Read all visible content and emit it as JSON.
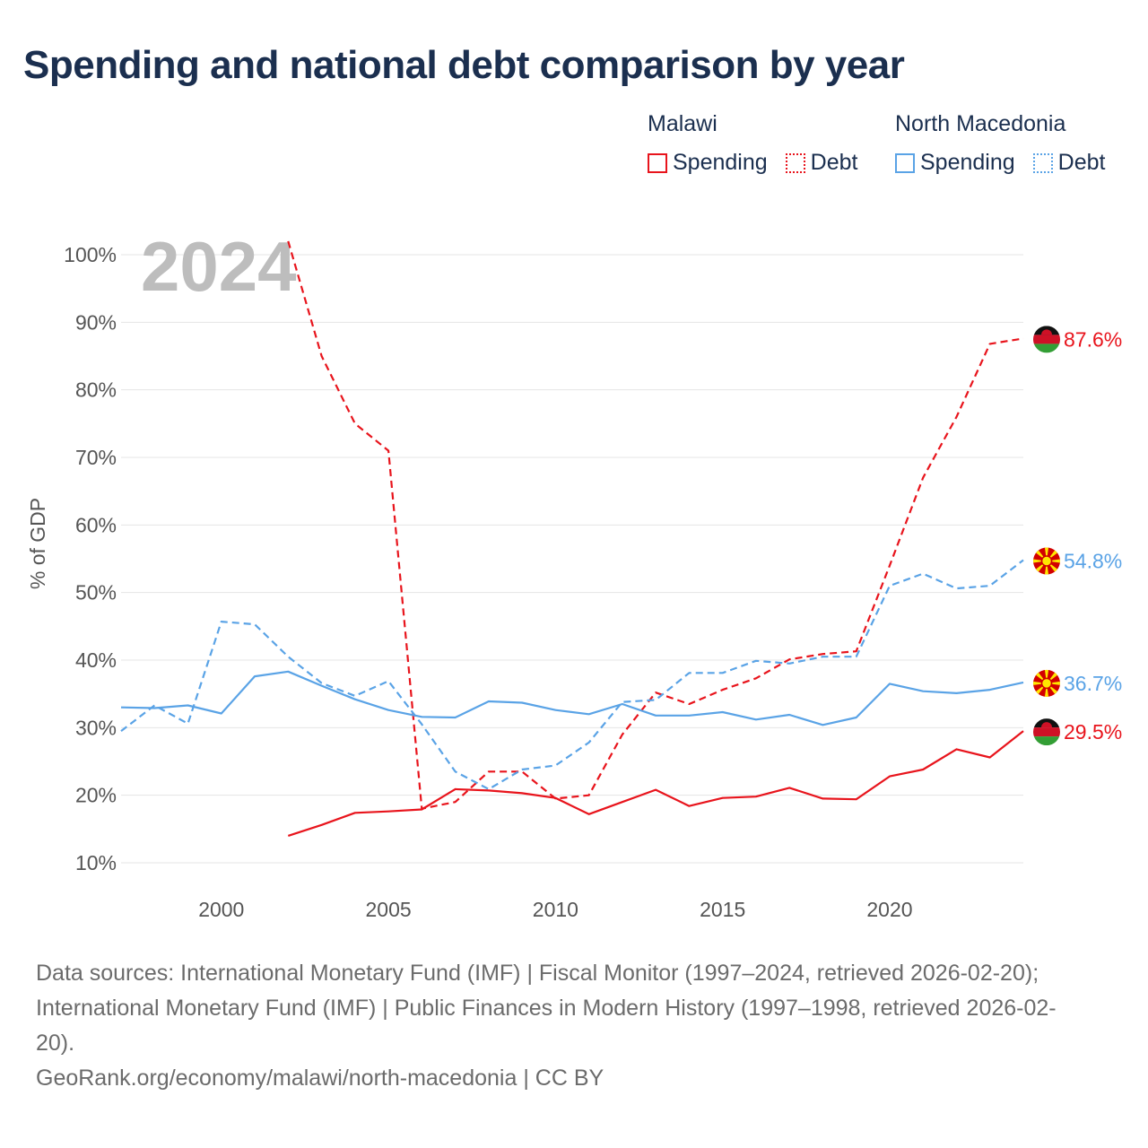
{
  "title": "Spending and national debt comparison by year",
  "legend": {
    "groups": [
      {
        "name": "Malawi",
        "items": [
          {
            "label": "Spending",
            "style": "solid",
            "color": "#e8141c"
          },
          {
            "label": "Debt",
            "style": "dashed",
            "color": "#e8141c"
          }
        ]
      },
      {
        "name": "North Macedonia",
        "items": [
          {
            "label": "Spending",
            "style": "solid",
            "color": "#5aa3e6"
          },
          {
            "label": "Debt",
            "style": "dashed",
            "color": "#5aa3e6"
          }
        ]
      }
    ]
  },
  "chart_data": {
    "type": "line",
    "title": "Spending and national debt comparison by year",
    "ylabel": "% of GDP",
    "xlabel": "",
    "year_watermark": "2024",
    "xlim": [
      1997,
      2024
    ],
    "ylim": [
      5,
      104
    ],
    "yticks": [
      10,
      20,
      30,
      40,
      50,
      60,
      70,
      80,
      90,
      100
    ],
    "ytick_labels": [
      "10%",
      "20%",
      "30%",
      "40%",
      "50%",
      "60%",
      "70%",
      "80%",
      "90%",
      "100%"
    ],
    "xticks": [
      2000,
      2005,
      2010,
      2015,
      2020
    ],
    "xtick_labels": [
      "2000",
      "2005",
      "2010",
      "2015",
      "2020"
    ],
    "grid": true,
    "series": [
      {
        "name": "Malawi Debt",
        "country": "Malawi",
        "metric": "Debt",
        "color": "#e8141c",
        "dashed": true,
        "x": [
          2002,
          2003,
          2004,
          2005,
          2006,
          2007,
          2008,
          2009,
          2010,
          2011,
          2012,
          2013,
          2014,
          2015,
          2016,
          2017,
          2018,
          2019,
          2020,
          2021,
          2022,
          2023,
          2024
        ],
        "y": [
          102,
          85,
          75,
          71,
          18,
          19,
          23.5,
          23.5,
          19.5,
          20,
          29,
          35.2,
          33.5,
          35.6,
          37.3,
          40.1,
          40.9,
          41.3,
          54,
          67,
          76,
          86.8,
          87.6
        ],
        "end_label": "87.6%",
        "flag": "malawi"
      },
      {
        "name": "North Macedonia Debt",
        "country": "North Macedonia",
        "metric": "Debt",
        "color": "#5aa3e6",
        "dashed": true,
        "x": [
          1997,
          1998,
          1999,
          2000,
          2001,
          2002,
          2003,
          2004,
          2005,
          2006,
          2007,
          2008,
          2009,
          2010,
          2011,
          2012,
          2013,
          2014,
          2015,
          2016,
          2017,
          2018,
          2019,
          2020,
          2021,
          2022,
          2023,
          2024
        ],
        "y": [
          29.5,
          33.3,
          30.6,
          45.7,
          45.3,
          40.5,
          36.6,
          34.7,
          36.9,
          30.5,
          23.5,
          20.9,
          23.8,
          24.4,
          27.8,
          33.8,
          34.1,
          38.1,
          38.1,
          39.9,
          39.5,
          40.5,
          40.5,
          51,
          52.8,
          50.6,
          51,
          54.8
        ],
        "end_label": "54.8%",
        "flag": "north-macedonia"
      },
      {
        "name": "North Macedonia Spending",
        "country": "North Macedonia",
        "metric": "Spending",
        "color": "#5aa3e6",
        "dashed": false,
        "x": [
          1997,
          1998,
          1999,
          2000,
          2001,
          2002,
          2003,
          2004,
          2005,
          2006,
          2007,
          2008,
          2009,
          2010,
          2011,
          2012,
          2013,
          2014,
          2015,
          2016,
          2017,
          2018,
          2019,
          2020,
          2021,
          2022,
          2023,
          2024
        ],
        "y": [
          33,
          32.9,
          33.3,
          32.1,
          37.6,
          38.3,
          36.2,
          34.2,
          32.6,
          31.6,
          31.5,
          33.9,
          33.7,
          32.6,
          32,
          33.5,
          31.8,
          31.8,
          32.3,
          31.2,
          31.9,
          30.4,
          31.5,
          36.5,
          35.4,
          35.1,
          35.6,
          36.7
        ],
        "end_label": "36.7%",
        "flag": "north-macedonia"
      },
      {
        "name": "Malawi Spending",
        "country": "Malawi",
        "metric": "Spending",
        "color": "#e8141c",
        "dashed": false,
        "x": [
          2002,
          2003,
          2004,
          2005,
          2006,
          2007,
          2008,
          2009,
          2010,
          2011,
          2012,
          2013,
          2014,
          2015,
          2016,
          2017,
          2018,
          2019,
          2020,
          2021,
          2022,
          2023,
          2024
        ],
        "y": [
          14,
          15.6,
          17.4,
          17.6,
          17.9,
          20.9,
          20.7,
          20.3,
          19.6,
          17.2,
          19,
          20.8,
          18.4,
          19.6,
          19.8,
          21.1,
          19.5,
          19.4,
          22.8,
          23.8,
          26.8,
          25.6,
          29.5
        ],
        "end_label": "29.5%",
        "flag": "malawi"
      }
    ]
  },
  "sources": {
    "line1": "Data sources: International Monetary Fund (IMF) | Fiscal Monitor (1997–2024, retrieved 2026-02-20);",
    "line2": "International Monetary Fund (IMF) | Public Finances in Modern History (1997–1998, retrieved 2026-02-",
    "line3": "20).",
    "credit": "GeoRank.org/economy/malawi/north-macedonia | CC BY"
  }
}
